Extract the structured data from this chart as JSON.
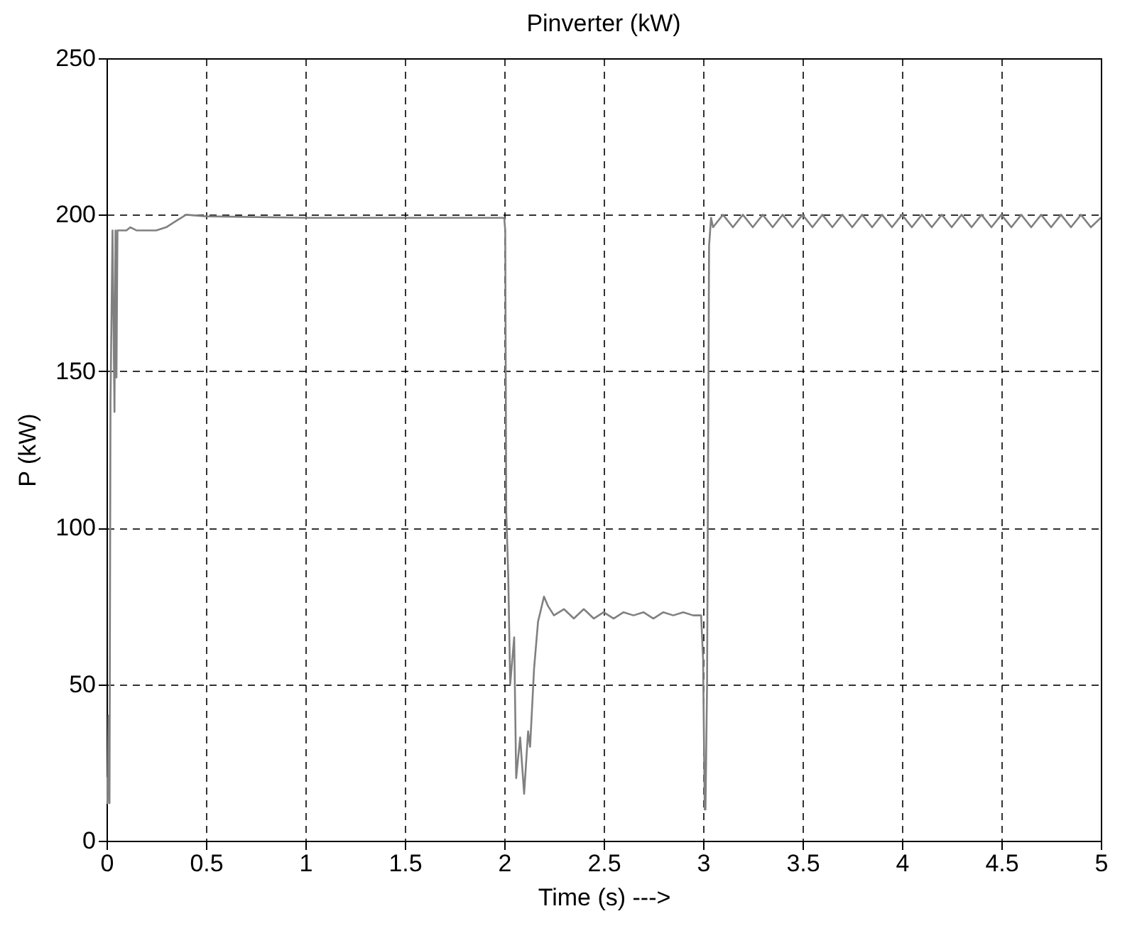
{
  "chart_data": {
    "type": "line",
    "title": "Pinverter (kW)",
    "xlabel": "Time (s) --->",
    "ylabel": "P (kW)",
    "series": [
      {
        "color": "#808080",
        "x": [
          0,
          0.005,
          0.01,
          0.015,
          0.02,
          0.03,
          0.04,
          0.045,
          0.05,
          0.055,
          0.1,
          0.12,
          0.15,
          0.25,
          0.3,
          0.35,
          0.4,
          0.5,
          1.0,
          1.5,
          2.0,
          2.005,
          2.01,
          2.02,
          2.03,
          2.05,
          2.06,
          2.08,
          2.1,
          2.12,
          2.13,
          2.15,
          2.17,
          2.2,
          2.22,
          2.25,
          2.3,
          2.35,
          2.4,
          2.45,
          2.5,
          2.55,
          2.6,
          2.65,
          2.7,
          2.75,
          2.8,
          2.85,
          2.9,
          2.95,
          2.99,
          3.0,
          3.008,
          3.012,
          3.02,
          3.03,
          3.04,
          3.05,
          3.1,
          3.15,
          3.2,
          3.25,
          3.3,
          3.35,
          3.4,
          3.45,
          3.5,
          3.55,
          3.6,
          3.65,
          3.7,
          3.75,
          3.8,
          3.85,
          3.9,
          3.95,
          4.0,
          4.05,
          4.1,
          4.15,
          4.2,
          4.25,
          4.3,
          4.35,
          4.4,
          4.45,
          4.5,
          4.55,
          4.6,
          4.65,
          4.7,
          4.75,
          4.8,
          4.85,
          4.9,
          4.95,
          5.0
        ],
        "values": [
          20,
          12,
          40,
          12,
          140,
          195,
          137,
          195,
          148,
          195,
          195,
          196,
          195,
          195,
          196,
          198,
          200,
          199.5,
          199,
          199,
          199,
          195,
          105,
          85,
          50,
          65,
          20,
          33,
          15,
          35,
          30,
          55,
          70,
          78,
          75,
          72,
          74,
          71,
          74,
          71,
          73,
          71,
          73,
          72,
          73,
          71,
          73,
          72,
          73,
          72,
          72,
          58,
          10,
          10,
          50,
          190,
          199,
          196,
          200,
          196,
          200,
          196,
          200,
          196,
          200,
          196,
          200,
          196,
          200,
          196,
          200,
          196,
          200,
          196,
          200,
          196,
          200,
          196,
          200,
          196,
          200,
          196,
          200,
          196,
          200,
          196,
          200,
          196,
          200,
          196,
          200,
          196,
          200,
          196,
          200,
          196,
          199
        ]
      }
    ],
    "xlim": [
      0,
      5
    ],
    "xticks": [
      0,
      0.5,
      1,
      1.5,
      2,
      2.5,
      3,
      3.5,
      4,
      4.5,
      5
    ],
    "ylim": [
      0,
      250
    ],
    "yticks": [
      0,
      50,
      100,
      150,
      200,
      250
    ],
    "grid": true,
    "line_style": "solid",
    "marker": "none"
  }
}
